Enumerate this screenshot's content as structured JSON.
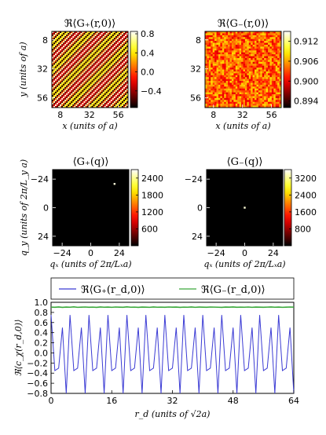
{
  "chart_data": [
    {
      "id": "p1",
      "type": "heatmap",
      "title": "ℜ⟨G₊(r,0)⟩",
      "xlabel": "x (units of a)",
      "ylabel": "y (units of a)",
      "xticks": [
        8,
        32,
        56
      ],
      "yticks": [
        8,
        32,
        56
      ],
      "xlim": [
        1,
        64
      ],
      "ylim": [
        1,
        64
      ],
      "colorbar": {
        "ticks": [
          0.8,
          0.4,
          0.0,
          -0.4
        ],
        "range": [
          -0.75,
          0.85
        ]
      },
      "pattern": "diagonal stripes, period ~3.2a"
    },
    {
      "id": "p2",
      "type": "heatmap",
      "title": "ℜ⟨G₋(r,0)⟩",
      "xlabel": "x (units of a)",
      "ylabel": "",
      "xticks": [
        8,
        32,
        56
      ],
      "yticks": [
        8,
        32,
        56
      ],
      "xlim": [
        1,
        64
      ],
      "ylim": [
        1,
        64
      ],
      "colorbar": {
        "ticks": [
          0.912,
          0.906,
          0.9,
          0.894
        ],
        "range": [
          0.892,
          0.915
        ]
      },
      "pattern": "random speckle"
    },
    {
      "id": "p3",
      "type": "heatmap",
      "title": "⟨G₊(q)⟩",
      "xlabel": "qₓ (units of 2π/Lₓa)",
      "ylabel": "q_y (units of 2π/L_y a)",
      "xticks": [
        -24,
        0,
        24
      ],
      "yticks": [
        -24,
        0,
        24
      ],
      "xlim": [
        -32,
        32
      ],
      "ylim": [
        -32,
        32
      ],
      "colorbar": {
        "ticks": [
          2400,
          1800,
          1200,
          600
        ],
        "range": [
          0,
          2700
        ]
      },
      "peaks": [
        {
          "qx": 20,
          "qy": -20
        }
      ]
    },
    {
      "id": "p4",
      "type": "heatmap",
      "title": "⟨G₋(q)⟩",
      "xlabel": "qₓ (units of 2π/Lₓa)",
      "ylabel": "",
      "xticks": [
        -24,
        0,
        24
      ],
      "yticks": [
        -24,
        0,
        24
      ],
      "xlim": [
        -32,
        32
      ],
      "ylim": [
        -32,
        32
      ],
      "colorbar": {
        "ticks": [
          3200,
          2400,
          1600,
          800
        ],
        "range": [
          0,
          3600
        ]
      },
      "peaks": [
        {
          "qx": 0,
          "qy": 0
        }
      ]
    },
    {
      "id": "p5",
      "type": "line",
      "title": "",
      "xlabel": "r_d (units of √2a)",
      "ylabel": "ℜ⟨c_χ(r_d,0)⟩",
      "xlim": [
        0,
        64
      ],
      "ylim": [
        -0.8,
        1.0
      ],
      "xticks": [
        0,
        16,
        32,
        48,
        64
      ],
      "yticks": [
        1.0,
        0.8,
        0.6,
        0.4,
        0.2,
        0.0,
        -0.2,
        -0.4,
        -0.6,
        -0.8
      ],
      "legend_position": "top",
      "series": [
        {
          "name": "ℜ⟨G₊(r_d,0)⟩",
          "color": "#3b3bd4",
          "pattern": [
            0.75,
            -0.35,
            -0.3,
            0.5,
            -0.8
          ],
          "values": [
            0.75,
            -0.35,
            -0.3,
            0.5,
            -0.8,
            0.75,
            -0.35,
            -0.3,
            0.5,
            -0.8,
            0.75,
            -0.35,
            -0.3,
            0.5,
            -0.8,
            0.75,
            -0.35,
            -0.3,
            0.5,
            -0.8,
            0.75,
            -0.35,
            -0.3,
            0.5,
            -0.8,
            0.75,
            -0.35,
            -0.3,
            0.5,
            -0.8,
            0.75,
            -0.35,
            -0.3,
            0.5,
            -0.8,
            0.75,
            -0.35,
            -0.3,
            0.5,
            -0.8,
            0.75,
            -0.35,
            -0.3,
            0.5,
            -0.8,
            0.75,
            -0.35,
            -0.3,
            0.5,
            -0.8,
            0.75,
            -0.35,
            -0.3,
            0.5,
            -0.8,
            0.75,
            -0.35,
            -0.3,
            0.5,
            -0.8,
            0.75,
            -0.35,
            -0.3,
            0.5,
            -0.8
          ]
        },
        {
          "name": "ℜ⟨G₋(r_d,0)⟩",
          "color": "#3aa83a",
          "values": [
            0.905,
            0.902,
            0.908,
            0.9,
            0.906,
            0.903,
            0.909,
            0.901,
            0.904,
            0.907,
            0.902,
            0.905,
            0.9,
            0.908,
            0.903,
            0.906,
            0.901,
            0.907,
            0.904,
            0.902,
            0.909,
            0.903,
            0.905,
            0.9,
            0.906,
            0.904,
            0.901,
            0.908,
            0.903,
            0.905,
            0.902,
            0.907,
            0.904,
            0.906,
            0.9,
            0.905,
            0.903,
            0.908,
            0.901,
            0.906,
            0.904,
            0.902,
            0.907,
            0.905,
            0.903,
            0.9,
            0.906,
            0.904,
            0.908,
            0.902,
            0.905,
            0.903,
            0.907,
            0.901,
            0.906,
            0.904,
            0.902,
            0.905,
            0.908,
            0.903,
            0.906,
            0.901,
            0.904,
            0.907,
            0.905
          ]
        }
      ]
    }
  ]
}
